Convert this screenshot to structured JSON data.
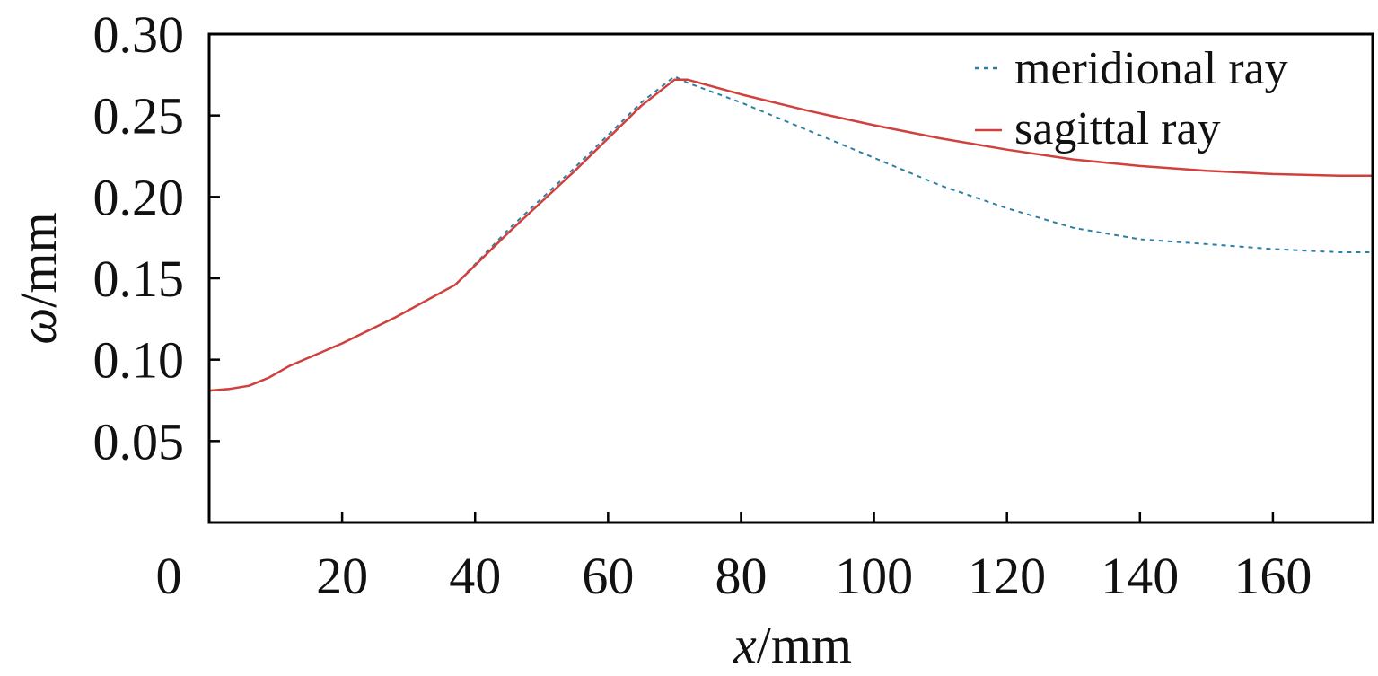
{
  "chart_data": {
    "type": "line",
    "xlabel_var": "x",
    "xlabel_unit": "/mm",
    "ylabel_var": "ω",
    "ylabel_unit": "/mm",
    "xlim": [
      0,
      175
    ],
    "ylim": [
      0,
      0.3
    ],
    "x_ticks": [
      0,
      20,
      40,
      60,
      80,
      100,
      120,
      140,
      160
    ],
    "x_tick_labels": [
      "0",
      "20",
      "40",
      "60",
      "80",
      "100",
      "120",
      "140",
      "160"
    ],
    "y_ticks": [
      0.05,
      0.1,
      0.15,
      0.2,
      0.25,
      0.3
    ],
    "y_tick_labels": [
      "0.05",
      "0.10",
      "0.15",
      "0.20",
      "0.25",
      "0.30"
    ],
    "grid": false,
    "legend_position": "top-right",
    "series": [
      {
        "name": "meridional ray",
        "color": "#2c7fa3",
        "style": "dotted",
        "x": [
          0,
          3,
          6,
          9,
          12,
          20,
          28,
          37,
          45,
          55,
          65,
          70,
          72,
          80,
          90,
          100,
          110,
          120,
          130,
          140,
          150,
          160,
          170,
          175
        ],
        "y": [
          0.081,
          0.082,
          0.084,
          0.089,
          0.096,
          0.11,
          0.126,
          0.146,
          0.18,
          0.218,
          0.258,
          0.274,
          0.27,
          0.258,
          0.241,
          0.224,
          0.207,
          0.193,
          0.181,
          0.174,
          0.171,
          0.168,
          0.166,
          0.166
        ]
      },
      {
        "name": "sagittal ray",
        "color": "#d0413e",
        "style": "solid",
        "x": [
          0,
          3,
          6,
          9,
          12,
          20,
          28,
          37,
          45,
          55,
          65,
          70,
          72,
          80,
          90,
          100,
          110,
          120,
          130,
          140,
          150,
          160,
          170,
          175
        ],
        "y": [
          0.081,
          0.082,
          0.084,
          0.089,
          0.096,
          0.11,
          0.126,
          0.146,
          0.178,
          0.216,
          0.256,
          0.272,
          0.272,
          0.263,
          0.253,
          0.244,
          0.236,
          0.229,
          0.223,
          0.219,
          0.216,
          0.214,
          0.213,
          0.213
        ]
      }
    ]
  }
}
